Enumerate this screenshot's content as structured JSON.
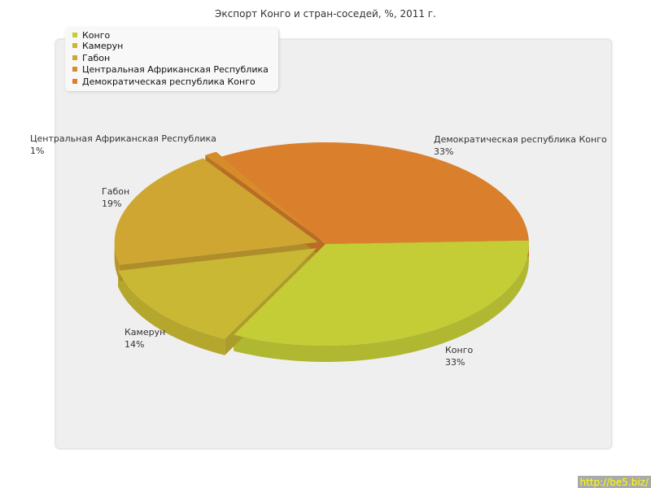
{
  "chart_data": {
    "type": "pie",
    "title": "Экспорт Конго и стран-соседей, %, 2011 г.",
    "legend_position": "top-left",
    "three_d": true,
    "slices": [
      {
        "name": "Конго",
        "value": 33,
        "label": "33%",
        "color": "#c4cc36"
      },
      {
        "name": "Камерун",
        "value": 14,
        "label": "14%",
        "color": "#c9b833"
      },
      {
        "name": "Габон",
        "value": 19,
        "label": "19%",
        "color": "#cea631"
      },
      {
        "name": "Центральная Африканская Республика",
        "value": 1,
        "label": "1%",
        "color": "#d68c2b"
      },
      {
        "name": "Демократическая республика Конго",
        "value": 33,
        "label": "33%",
        "color": "#da7f2c"
      }
    ]
  },
  "watermark": "http://be5.biz/"
}
